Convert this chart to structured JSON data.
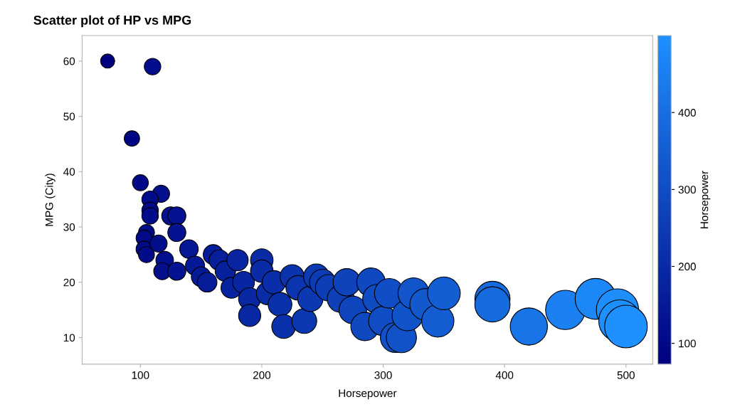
{
  "chart_data": {
    "type": "bubble",
    "title": "Scatter plot of HP vs MPG",
    "xlabel": "Horsepower",
    "ylabel": "MPG (City)",
    "clabel": "Horsepower",
    "x": [
      73,
      110,
      93,
      100,
      117,
      108,
      108,
      108,
      105,
      103,
      103,
      105,
      115,
      125,
      130,
      130,
      120,
      118,
      130,
      140,
      145,
      150,
      155,
      160,
      165,
      170,
      175,
      180,
      185,
      190,
      190,
      200,
      200,
      205,
      210,
      215,
      218,
      225,
      230,
      235,
      240,
      245,
      250,
      255,
      265,
      270,
      275,
      285,
      290,
      295,
      300,
      305,
      310,
      315,
      320,
      325,
      335,
      345,
      350,
      390,
      390,
      420,
      450,
      475,
      493,
      495,
      500
    ],
    "values": [
      60,
      59,
      46,
      38,
      36,
      35,
      33,
      32,
      29,
      28,
      26,
      25,
      27,
      32,
      32,
      29,
      24,
      22,
      22,
      26,
      23,
      21,
      20,
      25,
      24,
      22,
      19,
      24,
      20,
      17,
      14,
      24,
      22,
      18,
      20,
      16,
      12,
      21,
      19,
      13,
      17,
      21,
      20,
      19,
      17,
      20,
      15,
      12,
      20,
      17,
      13,
      18,
      10,
      10,
      14,
      18,
      16,
      13,
      18,
      17,
      16,
      12,
      15,
      17,
      15,
      13,
      12
    ],
    "sizes": [
      0.11,
      0.15,
      0.13,
      0.14,
      0.16,
      0.15,
      0.15,
      0.15,
      0.14,
      0.14,
      0.14,
      0.14,
      0.16,
      0.18,
      0.18,
      0.18,
      0.17,
      0.16,
      0.18,
      0.19,
      0.2,
      0.21,
      0.21,
      0.22,
      0.23,
      0.23,
      0.24,
      0.25,
      0.26,
      0.27,
      0.27,
      0.28,
      0.28,
      0.29,
      0.3,
      0.31,
      0.31,
      0.32,
      0.33,
      0.34,
      0.35,
      0.36,
      0.37,
      0.38,
      0.4,
      0.41,
      0.42,
      0.44,
      0.45,
      0.46,
      0.47,
      0.48,
      0.49,
      0.5,
      0.52,
      0.53,
      0.55,
      0.57,
      0.59,
      0.68,
      0.68,
      0.76,
      0.85,
      0.92,
      0.98,
      0.98,
      1.0
    ],
    "cvalues": [
      73,
      110,
      93,
      100,
      117,
      108,
      108,
      108,
      105,
      103,
      103,
      105,
      115,
      125,
      130,
      130,
      120,
      118,
      130,
      140,
      145,
      150,
      155,
      160,
      165,
      170,
      175,
      180,
      185,
      190,
      190,
      200,
      200,
      205,
      210,
      215,
      218,
      225,
      230,
      235,
      240,
      245,
      250,
      255,
      265,
      270,
      275,
      285,
      290,
      295,
      300,
      305,
      310,
      315,
      320,
      325,
      335,
      345,
      350,
      390,
      390,
      420,
      450,
      475,
      493,
      495,
      500
    ],
    "xlim": [
      52,
      522
    ],
    "xticks": [
      100,
      200,
      300,
      400,
      500
    ],
    "ylim": [
      5.2,
      64.6
    ],
    "yticks": [
      10,
      20,
      30,
      40,
      50,
      60
    ],
    "clim": [
      73,
      500
    ],
    "cticks": [
      100,
      200,
      300,
      400
    ],
    "grid": false,
    "legend": false
  }
}
